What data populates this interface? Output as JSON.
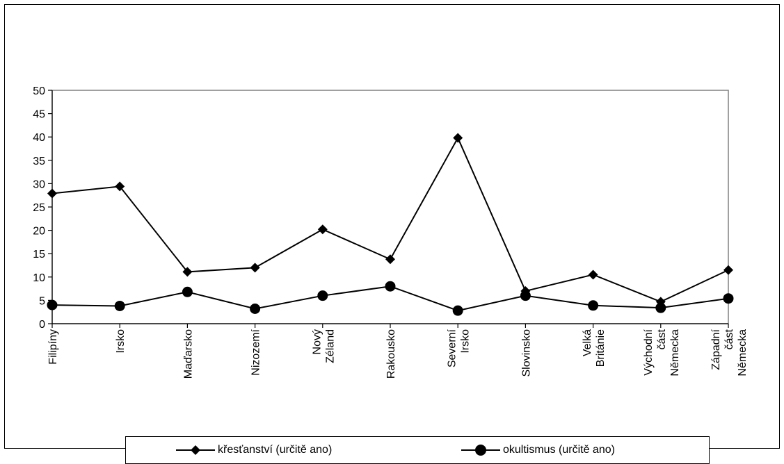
{
  "chart_data": {
    "type": "line",
    "title": "",
    "xlabel": "",
    "ylabel": "",
    "categories": [
      [
        "Filipíny"
      ],
      [
        "Irsko"
      ],
      [
        "Maďarsko"
      ],
      [
        "Nizozemí"
      ],
      [
        "Nový",
        "Zéland"
      ],
      [
        "Rakousko"
      ],
      [
        "Severní",
        "Irsko"
      ],
      [
        "Slovinsko"
      ],
      [
        "Velká",
        "Británie"
      ],
      [
        "Východní",
        "část",
        "Německa"
      ],
      [
        "Západní",
        "část",
        "Německa"
      ]
    ],
    "series": [
      {
        "name": "křesťanství (určitě ano)",
        "marker": "diamond",
        "values": [
          27.9,
          29.4,
          11.1,
          12.0,
          20.2,
          13.8,
          39.8,
          7.0,
          10.5,
          4.7,
          11.5
        ]
      },
      {
        "name": "okultismus (určitě ano)",
        "marker": "circle",
        "values": [
          4.0,
          3.8,
          6.8,
          3.2,
          6.0,
          8.0,
          2.8,
          6.0,
          3.9,
          3.4,
          5.4
        ]
      }
    ],
    "ylim": [
      0,
      50
    ],
    "yticks": [
      0,
      5,
      10,
      15,
      20,
      25,
      30,
      35,
      40,
      45,
      50
    ],
    "grid": false,
    "legend": "bottom",
    "colors": {
      "line": "#000000",
      "axis": "#808080",
      "background": "#ffffff"
    }
  }
}
